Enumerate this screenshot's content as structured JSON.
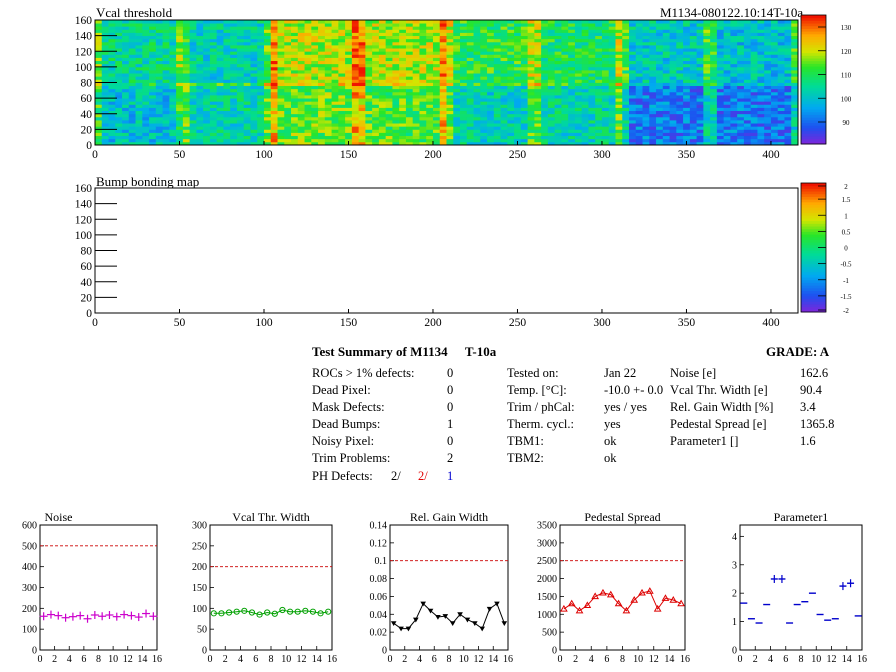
{
  "maps": {
    "vcal": {
      "title": "Vcal threshold",
      "id_label": "M1134-080122.10:14T-10a",
      "palette_ticks": [
        "130",
        "120",
        "110",
        "100",
        "90"
      ]
    },
    "bump": {
      "title": "Bump bonding map",
      "palette_ticks": [
        "2",
        "1.5",
        "1",
        "0.5",
        "0",
        "-0.5",
        "-1",
        "-1.5",
        "-2"
      ]
    },
    "x_ticks": [
      "0",
      "50",
      "100",
      "150",
      "200",
      "250",
      "300",
      "350",
      "400"
    ],
    "y_ticks": [
      "0",
      "20",
      "40",
      "60",
      "80",
      "100",
      "120",
      "140",
      "160"
    ]
  },
  "summary": {
    "title": "Test Summary of M1134",
    "temp_label": "T-10a",
    "grade": "GRADE:  A",
    "col1": [
      {
        "label": "ROCs > 1% defects:",
        "value": "0"
      },
      {
        "label": "Dead Pixel:",
        "value": "0"
      },
      {
        "label": "Mask Defects:",
        "value": "0"
      },
      {
        "label": "Dead Bumps:",
        "value": "1"
      },
      {
        "label": "Noisy Pixel:",
        "value": "0"
      },
      {
        "label": "Trim Problems:",
        "value": "2"
      }
    ],
    "ph_defects": {
      "label": "PH Defects:",
      "v1": "2/",
      "v2": "2/",
      "v3": "1"
    },
    "col2": [
      {
        "label": "Tested on:",
        "value": "Jan 22"
      },
      {
        "label": "Temp. [°C]:",
        "value": "-10.0 +- 0.0"
      },
      {
        "label": "Trim / phCal:",
        "value": "yes / yes"
      },
      {
        "label": "Therm. cycl.:",
        "value": "yes"
      },
      {
        "label": "TBM1:",
        "value": "ok"
      },
      {
        "label": "TBM2:",
        "value": "ok"
      }
    ],
    "col3": [
      {
        "label": "Noise [e]",
        "value": "162.6"
      },
      {
        "label": "Vcal Thr. Width [e]",
        "value": "90.4"
      },
      {
        "label": "Rel. Gain Width [%]",
        "value": "3.4"
      },
      {
        "label": "Pedestal Spread [e]",
        "value": "1365.8"
      },
      {
        "label": "Parameter1 []",
        "value": "1.6"
      }
    ]
  },
  "chart_data": [
    {
      "type": "scatter",
      "title": "Noise",
      "color": "#cc00cc",
      "marker": "plus",
      "ylim": [
        0,
        600
      ],
      "yticks": [
        "0",
        "100",
        "200",
        "300",
        "400",
        "500",
        "600"
      ],
      "xlim": [
        0,
        16
      ],
      "xticks": [
        "0",
        "2",
        "4",
        "6",
        "8",
        "10",
        "12",
        "14",
        "16"
      ],
      "ref_line": 500,
      "x": [
        0.5,
        1.5,
        2.5,
        3.5,
        4.5,
        5.5,
        6.5,
        7.5,
        8.5,
        9.5,
        10.5,
        11.5,
        12.5,
        13.5,
        14.5,
        15.5
      ],
      "values": [
        162,
        170,
        165,
        155,
        160,
        165,
        150,
        168,
        162,
        168,
        160,
        170,
        165,
        158,
        175,
        162
      ]
    },
    {
      "type": "line",
      "title": "Vcal Thr. Width",
      "color": "#00a000",
      "marker": "circle",
      "ylim": [
        0,
        300
      ],
      "yticks": [
        "0",
        "50",
        "100",
        "150",
        "200",
        "250",
        "300"
      ],
      "xlim": [
        0,
        16
      ],
      "xticks": [
        "0",
        "2",
        "4",
        "6",
        "8",
        "10",
        "12",
        "14",
        "16"
      ],
      "ref_line": 200,
      "x": [
        0.5,
        1.5,
        2.5,
        3.5,
        4.5,
        5.5,
        6.5,
        7.5,
        8.5,
        9.5,
        10.5,
        11.5,
        12.5,
        13.5,
        14.5,
        15.5
      ],
      "values": [
        88,
        88,
        90,
        92,
        94,
        90,
        85,
        90,
        87,
        96,
        92,
        92,
        94,
        92,
        88,
        92
      ]
    },
    {
      "type": "line",
      "title": "Rel. Gain Width",
      "color": "#000000",
      "marker": "triangle-down",
      "ylim": [
        0,
        0.14
      ],
      "yticks": [
        "0",
        "0.02",
        "0.04",
        "0.06",
        "0.08",
        "0.1",
        "0.12",
        "0.14"
      ],
      "xlim": [
        0,
        16
      ],
      "xticks": [
        "0",
        "2",
        "4",
        "6",
        "8",
        "10",
        "12",
        "14",
        "16"
      ],
      "ref_line": 0.1,
      "x": [
        0.5,
        1.5,
        2.5,
        3.5,
        4.5,
        5.5,
        6.5,
        7.5,
        8.5,
        9.5,
        10.5,
        11.5,
        12.5,
        13.5,
        14.5,
        15.5
      ],
      "values": [
        0.03,
        0.024,
        0.024,
        0.034,
        0.052,
        0.044,
        0.037,
        0.038,
        0.03,
        0.04,
        0.034,
        0.03,
        0.024,
        0.046,
        0.052,
        0.03
      ]
    },
    {
      "type": "line",
      "title": "Pedestal Spread",
      "color": "#dd0000",
      "marker": "triangle-up",
      "ylim": [
        0,
        3500
      ],
      "yticks": [
        "0",
        "500",
        "1000",
        "1500",
        "2000",
        "2500",
        "3000",
        "3500"
      ],
      "xlim": [
        0,
        16
      ],
      "xticks": [
        "0",
        "2",
        "4",
        "6",
        "8",
        "10",
        "12",
        "14",
        "16"
      ],
      "ref_line": 2500,
      "x": [
        0.5,
        1.5,
        2.5,
        3.5,
        4.5,
        5.5,
        6.5,
        7.5,
        8.5,
        9.5,
        10.5,
        11.5,
        12.5,
        13.5,
        14.5,
        15.5
      ],
      "values": [
        1150,
        1300,
        1100,
        1250,
        1500,
        1600,
        1550,
        1300,
        1100,
        1400,
        1600,
        1650,
        1150,
        1450,
        1400,
        1300
      ]
    },
    {
      "type": "scatter",
      "title": "Parameter1",
      "color": "#0000cc",
      "marker": "hbar",
      "ylim": [
        0,
        4.4
      ],
      "yticks": [
        "0",
        "1",
        "2",
        "3",
        "4"
      ],
      "xlim": [
        0,
        16
      ],
      "xticks": [
        "0",
        "2",
        "4",
        "6",
        "8",
        "10",
        "12",
        "14",
        "16"
      ],
      "ref_line": null,
      "x": [
        0.5,
        1.5,
        2.5,
        3.5,
        4.5,
        5.5,
        6.5,
        7.5,
        8.5,
        9.5,
        10.5,
        11.5,
        12.5,
        13.5,
        14.5,
        15.5
      ],
      "values": [
        1.65,
        1.1,
        0.95,
        1.6,
        2.5,
        2.5,
        0.95,
        1.6,
        1.7,
        2.0,
        1.25,
        1.05,
        1.1,
        2.25,
        2.35,
        1.2
      ]
    }
  ]
}
